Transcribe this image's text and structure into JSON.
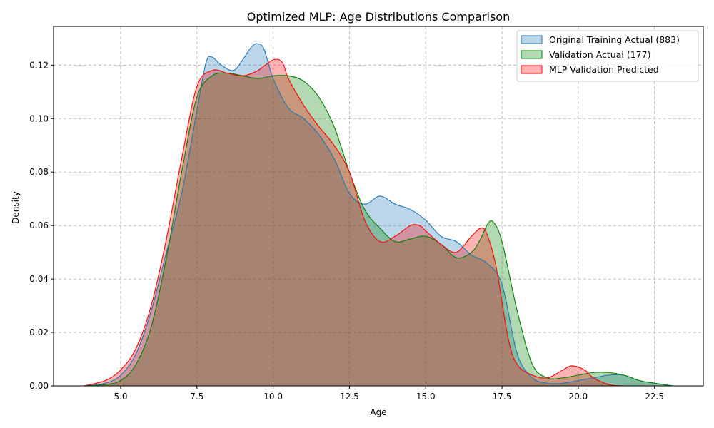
{
  "chart_data": {
    "type": "area",
    "title": "Optimized MLP: Age Distributions Comparison",
    "xlabel": "Age",
    "ylabel": "Density",
    "xlim": [
      2.8,
      24.1
    ],
    "ylim": [
      0.0,
      0.1345
    ],
    "xticks": [
      5.0,
      7.5,
      10.0,
      12.5,
      15.0,
      17.5,
      20.0,
      22.5
    ],
    "xtick_labels": [
      "5.0",
      "7.5",
      "10.0",
      "12.5",
      "15.0",
      "17.5",
      "20.0",
      "22.5"
    ],
    "yticks": [
      0.0,
      0.02,
      0.04,
      0.06,
      0.08,
      0.1,
      0.12
    ],
    "ytick_labels": [
      "0.00",
      "0.02",
      "0.04",
      "0.06",
      "0.08",
      "0.10",
      "0.12"
    ],
    "grid": true,
    "legend_position": "top-right",
    "series": [
      {
        "name": "Original Training Actual (883)",
        "line_color": "#1f77b4",
        "fill_color": "#1f77b4",
        "fill_opacity": 0.3,
        "x": [
          3.8,
          4.5,
          5.0,
          5.5,
          6.0,
          6.5,
          7.0,
          7.5,
          7.8,
          8.0,
          8.3,
          8.7,
          9.0,
          9.3,
          9.5,
          9.7,
          10.0,
          10.5,
          11.0,
          11.5,
          12.0,
          12.5,
          13.0,
          13.5,
          14.0,
          14.5,
          15.0,
          15.5,
          16.0,
          16.5,
          17.0,
          17.5,
          18.0,
          18.5,
          19.0,
          19.5,
          20.0,
          20.5,
          21.0,
          21.5,
          22.0,
          22.5,
          23.1
        ],
        "y": [
          0.0,
          0.001,
          0.004,
          0.012,
          0.028,
          0.05,
          0.072,
          0.103,
          0.121,
          0.123,
          0.12,
          0.118,
          0.122,
          0.127,
          0.128,
          0.126,
          0.115,
          0.104,
          0.1,
          0.094,
          0.085,
          0.072,
          0.068,
          0.071,
          0.068,
          0.066,
          0.062,
          0.056,
          0.054,
          0.049,
          0.046,
          0.038,
          0.012,
          0.003,
          0.001,
          0.001,
          0.002,
          0.003,
          0.004,
          0.004,
          0.002,
          0.001,
          0.0
        ]
      },
      {
        "name": "Validation Actual (177)",
        "line_color": "#008000",
        "fill_color": "#008000",
        "fill_opacity": 0.3,
        "x": [
          3.8,
          4.5,
          5.0,
          5.5,
          6.0,
          6.5,
          7.0,
          7.5,
          8.0,
          8.5,
          9.0,
          9.5,
          10.0,
          10.5,
          11.0,
          11.5,
          12.0,
          12.5,
          13.0,
          13.5,
          14.0,
          14.5,
          15.0,
          15.5,
          16.0,
          16.5,
          16.8,
          17.0,
          17.2,
          17.5,
          18.0,
          18.5,
          19.0,
          19.5,
          20.0,
          20.5,
          21.0,
          21.5,
          22.0,
          22.5,
          23.1
        ],
        "y": [
          0.0,
          0.0005,
          0.002,
          0.008,
          0.022,
          0.048,
          0.08,
          0.108,
          0.116,
          0.117,
          0.116,
          0.115,
          0.116,
          0.116,
          0.114,
          0.108,
          0.097,
          0.08,
          0.066,
          0.059,
          0.054,
          0.055,
          0.056,
          0.053,
          0.048,
          0.05,
          0.055,
          0.06,
          0.0615,
          0.054,
          0.028,
          0.008,
          0.003,
          0.003,
          0.004,
          0.005,
          0.005,
          0.004,
          0.002,
          0.001,
          0.0
        ]
      },
      {
        "name": "MLP Validation Predicted",
        "line_color": "#ff0000",
        "fill_color": "#ff0000",
        "fill_opacity": 0.3,
        "x": [
          3.8,
          4.5,
          5.0,
          5.5,
          6.0,
          6.5,
          7.0,
          7.5,
          8.0,
          8.5,
          9.0,
          9.5,
          10.0,
          10.3,
          10.5,
          11.0,
          11.5,
          12.0,
          12.5,
          13.0,
          13.5,
          14.0,
          14.5,
          14.8,
          15.0,
          15.5,
          16.0,
          16.5,
          16.8,
          17.0,
          17.3,
          17.7,
          18.0,
          18.5,
          19.0,
          19.5,
          19.8,
          20.2,
          20.5,
          21.0,
          21.5
        ],
        "y": [
          0.0,
          0.002,
          0.006,
          0.014,
          0.03,
          0.055,
          0.085,
          0.112,
          0.118,
          0.117,
          0.116,
          0.118,
          0.122,
          0.121,
          0.115,
          0.105,
          0.097,
          0.09,
          0.08,
          0.062,
          0.054,
          0.056,
          0.06,
          0.06,
          0.058,
          0.053,
          0.05,
          0.056,
          0.059,
          0.057,
          0.045,
          0.018,
          0.008,
          0.004,
          0.003,
          0.006,
          0.0075,
          0.006,
          0.003,
          0.0005,
          0.0
        ]
      }
    ]
  }
}
